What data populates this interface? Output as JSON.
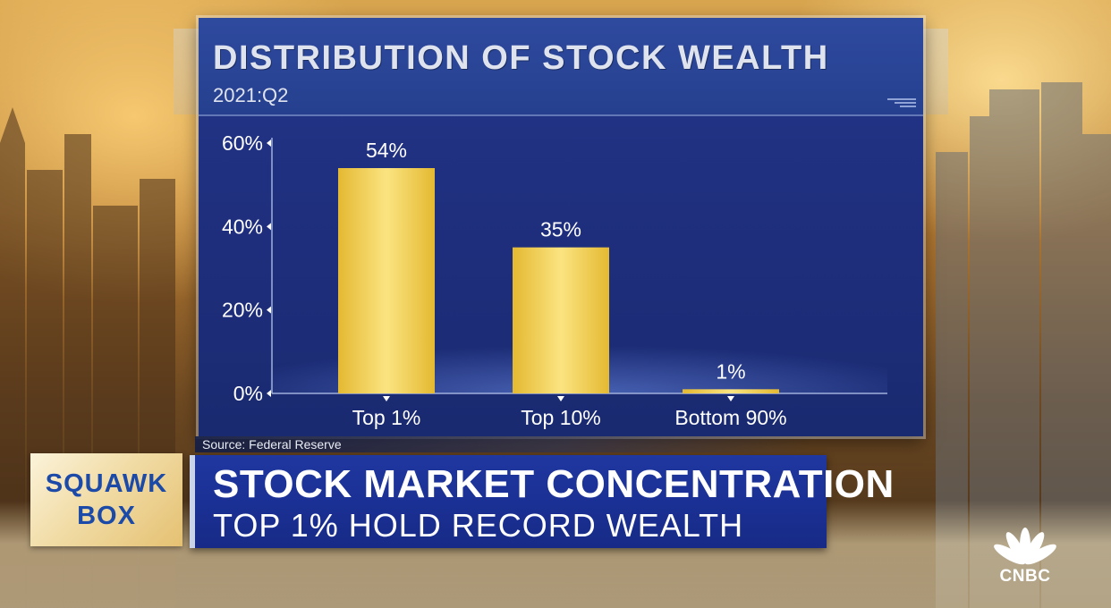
{
  "chart_data": {
    "type": "bar",
    "title": "DISTRIBUTION OF STOCK WEALTH",
    "subtitle": "2021:Q2",
    "categories": [
      "Top 1%",
      "Top 10%",
      "Bottom 90%"
    ],
    "values": [
      54,
      35,
      1
    ],
    "data_labels": [
      "54%",
      "35%",
      "1%"
    ],
    "y_ticks": [
      0,
      20,
      40,
      60
    ],
    "y_tick_labels": [
      "0%",
      "20%",
      "40%",
      "60%"
    ],
    "ylim": [
      0,
      60
    ],
    "xlabel": "",
    "ylabel": "",
    "grid": false,
    "legend": "none",
    "source": "Source: Federal Reserve",
    "colors": {
      "bar": "#f0d24a",
      "panel": "#1e2e7c"
    }
  },
  "lower_third": {
    "show_logo": [
      "SQUAWK",
      "BOX"
    ],
    "headline": "STOCK MARKET CONCENTRATION",
    "subhead": "TOP 1% HOLD RECORD WEALTH"
  },
  "network_logo": {
    "text": "CNBC",
    "icon": "peacock-icon"
  }
}
